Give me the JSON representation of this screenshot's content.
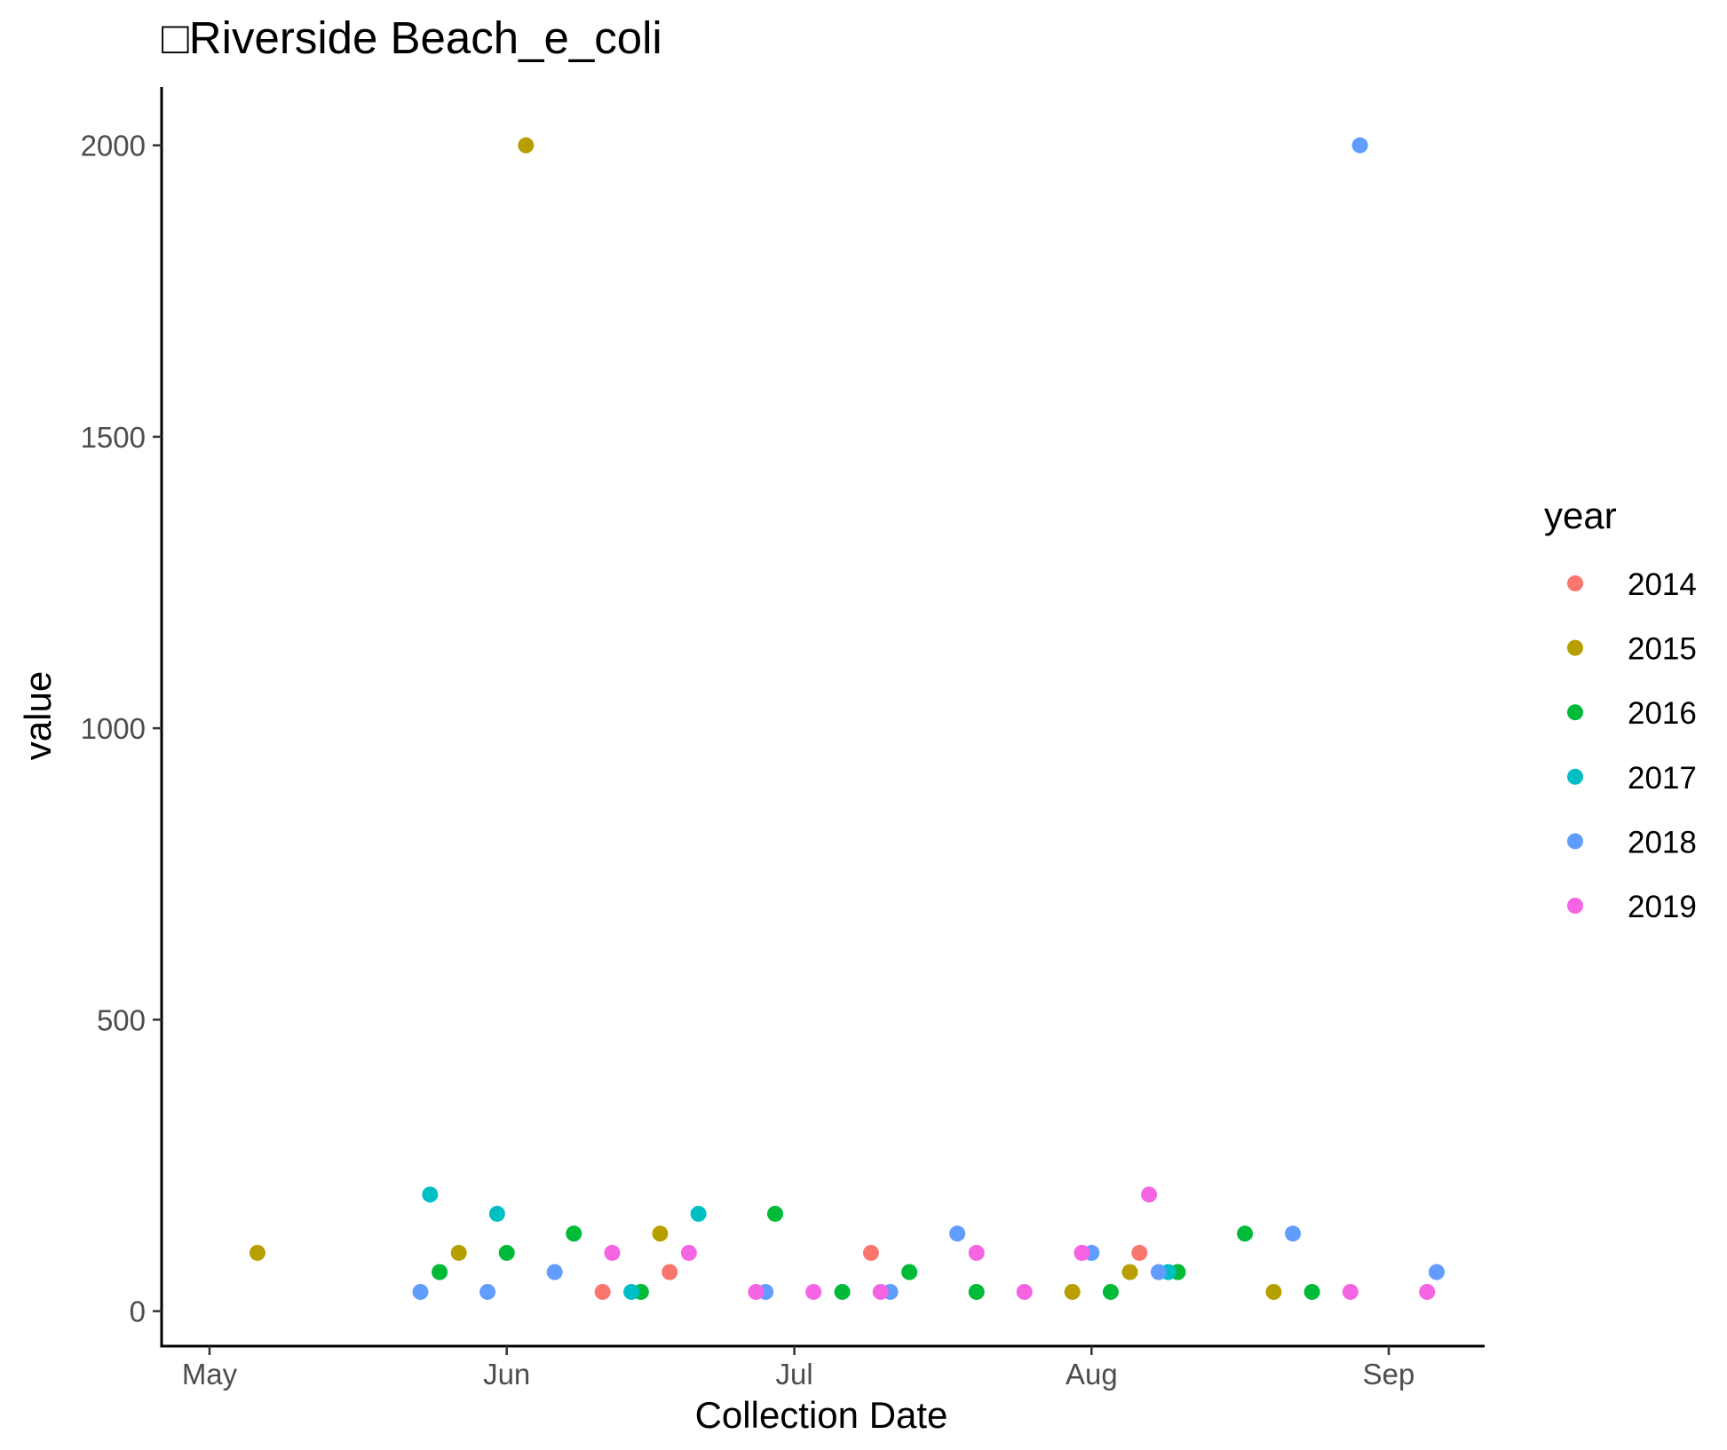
{
  "chart_data": {
    "type": "scatter",
    "title": "□Riverside Beach_e_coli",
    "xlabel": "Collection Date",
    "ylabel": "value",
    "x_ticks": [
      {
        "label": "May",
        "day": 0
      },
      {
        "label": "Jun",
        "day": 31
      },
      {
        "label": "Jul",
        "day": 61
      },
      {
        "label": "Aug",
        "day": 92
      },
      {
        "label": "Sep",
        "day": 123
      }
    ],
    "xlim": [
      "Apr 26",
      "Sep 11"
    ],
    "ylim": [
      -60,
      2100
    ],
    "y_ticks": [
      0,
      500,
      1000,
      1500,
      2000
    ],
    "grid": false,
    "legend": {
      "title": "year",
      "position": "right"
    },
    "series": [
      {
        "name": "2014",
        "color": "#F8766D",
        "points": [
          {
            "x": "Jun 11",
            "y": 33
          },
          {
            "x": "Jun 18",
            "y": 67
          },
          {
            "x": "Jul 9",
            "y": 100
          },
          {
            "x": "Jul 31",
            "y": 100
          },
          {
            "x": "Aug 6",
            "y": 100
          }
        ]
      },
      {
        "name": "2015",
        "color": "#B79F00",
        "points": [
          {
            "x": "May 6",
            "y": 100
          },
          {
            "x": "May 27",
            "y": 100
          },
          {
            "x": "Jun 3",
            "y": 2000
          },
          {
            "x": "Jun 17",
            "y": 133
          },
          {
            "x": "Jul 30",
            "y": 33
          },
          {
            "x": "Aug 5",
            "y": 67
          },
          {
            "x": "Aug 20",
            "y": 33
          }
        ]
      },
      {
        "name": "2016",
        "color": "#00BA38",
        "points": [
          {
            "x": "May 25",
            "y": 67
          },
          {
            "x": "Jun 1",
            "y": 100
          },
          {
            "x": "Jun 8",
            "y": 133
          },
          {
            "x": "Jun 15",
            "y": 33
          },
          {
            "x": "Jun 29",
            "y": 167
          },
          {
            "x": "Jul 6",
            "y": 33
          },
          {
            "x": "Jul 13",
            "y": 67
          },
          {
            "x": "Jul 20",
            "y": 33
          },
          {
            "x": "Aug 3",
            "y": 33
          },
          {
            "x": "Aug 10",
            "y": 67
          },
          {
            "x": "Aug 17",
            "y": 133
          },
          {
            "x": "Aug 24",
            "y": 33
          }
        ]
      },
      {
        "name": "2017",
        "color": "#00BFC4",
        "points": [
          {
            "x": "May 24",
            "y": 200
          },
          {
            "x": "May 31",
            "y": 167
          },
          {
            "x": "Jun 14",
            "y": 33
          },
          {
            "x": "Jun 21",
            "y": 167
          },
          {
            "x": "Aug 9",
            "y": 67
          }
        ]
      },
      {
        "name": "2018",
        "color": "#619CFF",
        "points": [
          {
            "x": "May 23",
            "y": 33
          },
          {
            "x": "May 30",
            "y": 33
          },
          {
            "x": "Jun 6",
            "y": 67
          },
          {
            "x": "Jun 28",
            "y": 33
          },
          {
            "x": "Jul 11",
            "y": 33
          },
          {
            "x": "Jul 18",
            "y": 133
          },
          {
            "x": "Aug 1",
            "y": 100
          },
          {
            "x": "Aug 8",
            "y": 67
          },
          {
            "x": "Aug 22",
            "y": 133
          },
          {
            "x": "Aug 29",
            "y": 2000
          },
          {
            "x": "Sep 6",
            "y": 67
          }
        ]
      },
      {
        "name": "2019",
        "color": "#F564E3",
        "points": [
          {
            "x": "Jun 12",
            "y": 100
          },
          {
            "x": "Jun 20",
            "y": 100
          },
          {
            "x": "Jun 27",
            "y": 33
          },
          {
            "x": "Jul 3",
            "y": 33
          },
          {
            "x": "Jul 10",
            "y": 33
          },
          {
            "x": "Jul 20",
            "y": 100
          },
          {
            "x": "Jul 25",
            "y": 33
          },
          {
            "x": "Jul 31",
            "y": 100
          },
          {
            "x": "Aug 7",
            "y": 200
          },
          {
            "x": "Aug 28",
            "y": 33
          },
          {
            "x": "Sep 5",
            "y": 33
          }
        ]
      }
    ]
  }
}
